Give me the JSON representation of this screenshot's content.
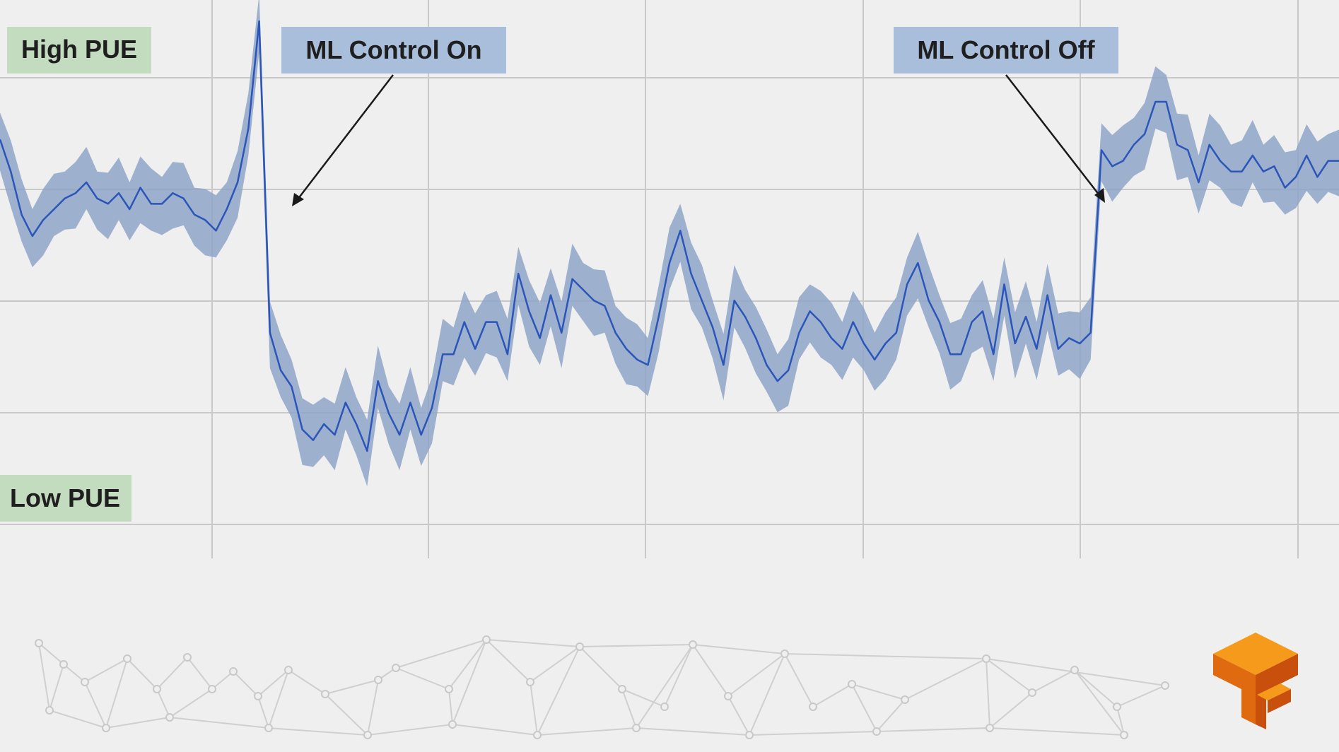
{
  "chart_data": {
    "type": "line",
    "title": "",
    "xlabel": "",
    "ylabel": "",
    "grid": true,
    "legend": "none",
    "y_axis_labels": {
      "top": "High PUE",
      "bottom": "Low PUE"
    },
    "annotations": [
      {
        "text": "ML Control On",
        "x": 26
      },
      {
        "text": "ML Control Off",
        "x": 103
      }
    ],
    "xlim": [
      0,
      124
    ],
    "ylim": [
      0,
      100
    ],
    "series": [
      {
        "line_color": "#2b55b8",
        "band_color": "#8ea4c8",
        "band_halfwidth": 5,
        "values": [
          78,
          72,
          64,
          60,
          63,
          65,
          67,
          68,
          70,
          67,
          66,
          68,
          65,
          69,
          66,
          66,
          68,
          67,
          64,
          63,
          61,
          65,
          70,
          80,
          100,
          42,
          35,
          32,
          24,
          22,
          25,
          23,
          29,
          25,
          20,
          33,
          27,
          23,
          29,
          23,
          28,
          38,
          38,
          44,
          39,
          44,
          44,
          38,
          53,
          46,
          41,
          49,
          42,
          52,
          50,
          48,
          47,
          42,
          39,
          37,
          36,
          45,
          55,
          61,
          53,
          48,
          43,
          36,
          48,
          45,
          41,
          36,
          33,
          35,
          42,
          46,
          44,
          41,
          39,
          44,
          40,
          37,
          40,
          42,
          51,
          55,
          48,
          44,
          38,
          38,
          44,
          46,
          38,
          51,
          40,
          45,
          39,
          49,
          39,
          41,
          40,
          42,
          76,
          73,
          74,
          77,
          79,
          85,
          85,
          77,
          76,
          70,
          77,
          74,
          72,
          72,
          75,
          72,
          73,
          69,
          71,
          75,
          71,
          74,
          74
        ]
      }
    ]
  },
  "colors": {
    "background": "#efefef",
    "grid": "#c9c9c9",
    "high_pue_box": "#c3dbbe",
    "low_pue_box": "#c3dbbe",
    "annotation_box": "#a9bedb",
    "logo_orange": "#f59a1a",
    "logo_dark": "#e06a0f"
  },
  "icons": {
    "logo": "tensorflow-logo-icon",
    "decoration": "network-mesh-decoration"
  }
}
